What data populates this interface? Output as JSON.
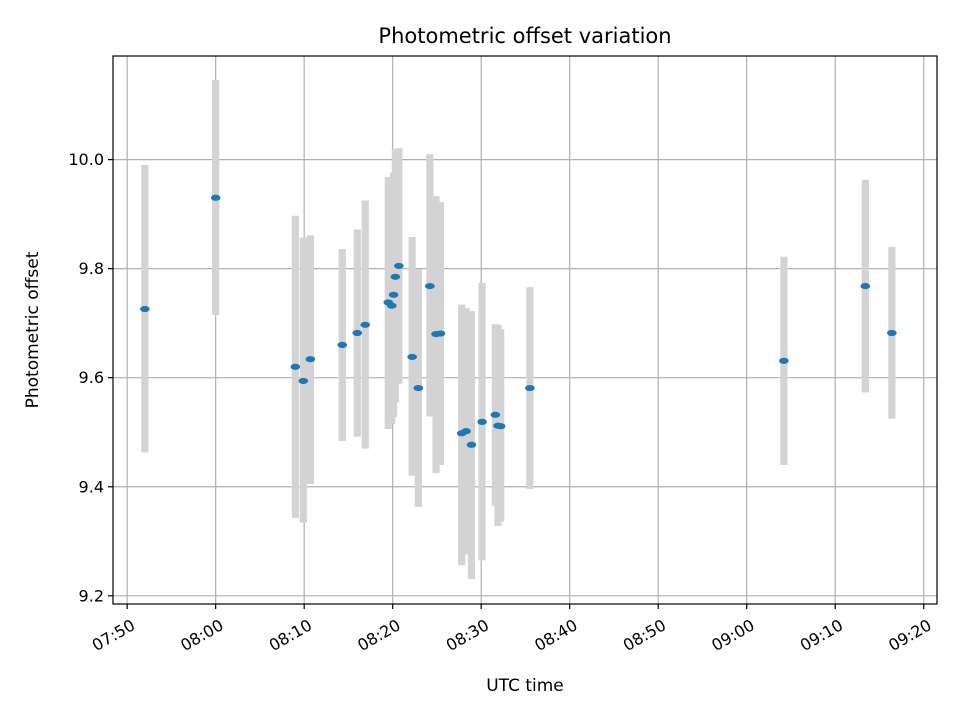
{
  "chart_data": {
    "type": "scatter",
    "title": "Photometric offset variation",
    "xlabel": "UTC time",
    "ylabel": "Photometric offset",
    "x_unit": "minutes after 07:50 UTC",
    "xlim": [
      -1.6,
      91.5
    ],
    "ylim": [
      9.185,
      10.19
    ],
    "xticks": [
      0,
      10,
      20,
      30,
      40,
      50,
      60,
      70,
      80,
      90
    ],
    "xtick_labels": [
      "07:50",
      "08:00",
      "08:10",
      "08:20",
      "08:30",
      "08:40",
      "08:50",
      "09:00",
      "09:10",
      "09:20"
    ],
    "yticks": [
      9.2,
      9.4,
      9.6,
      9.8,
      10.0
    ],
    "ytick_labels": [
      "9.2",
      "9.4",
      "9.6",
      "9.8",
      "10.0"
    ],
    "grid": true,
    "errorbar_color": "#d3d3d3",
    "marker_color": "#1f77b4",
    "points": [
      {
        "x": 2.0,
        "y": 9.726,
        "lo": 9.463,
        "hi": 9.99
      },
      {
        "x": 10.0,
        "y": 9.93,
        "lo": 9.715,
        "hi": 10.146
      },
      {
        "x": 19.0,
        "y": 9.62,
        "lo": 9.343,
        "hi": 9.897
      },
      {
        "x": 19.9,
        "y": 9.594,
        "lo": 9.334,
        "hi": 9.857
      },
      {
        "x": 20.7,
        "y": 9.634,
        "lo": 9.405,
        "hi": 9.861
      },
      {
        "x": 24.3,
        "y": 9.66,
        "lo": 9.484,
        "hi": 9.836
      },
      {
        "x": 26.0,
        "y": 9.682,
        "lo": 9.492,
        "hi": 9.872
      },
      {
        "x": 26.9,
        "y": 9.697,
        "lo": 9.47,
        "hi": 9.925
      },
      {
        "x": 29.5,
        "y": 9.738,
        "lo": 9.506,
        "hi": 9.968
      },
      {
        "x": 29.9,
        "y": 9.732,
        "lo": 9.515,
        "hi": 9.958
      },
      {
        "x": 30.1,
        "y": 9.752,
        "lo": 9.528,
        "hi": 9.976
      },
      {
        "x": 30.3,
        "y": 9.785,
        "lo": 9.555,
        "hi": 10.019
      },
      {
        "x": 30.7,
        "y": 9.805,
        "lo": 9.589,
        "hi": 10.021
      },
      {
        "x": 32.2,
        "y": 9.638,
        "lo": 9.42,
        "hi": 9.858
      },
      {
        "x": 32.9,
        "y": 9.581,
        "lo": 9.363,
        "hi": 9.799
      },
      {
        "x": 34.2,
        "y": 9.768,
        "lo": 9.529,
        "hi": 10.01
      },
      {
        "x": 34.9,
        "y": 9.68,
        "lo": 9.425,
        "hi": 9.933
      },
      {
        "x": 35.4,
        "y": 9.681,
        "lo": 9.44,
        "hi": 9.922
      },
      {
        "x": 37.8,
        "y": 9.498,
        "lo": 9.256,
        "hi": 9.734
      },
      {
        "x": 38.3,
        "y": 9.502,
        "lo": 9.276,
        "hi": 9.728
      },
      {
        "x": 38.9,
        "y": 9.477,
        "lo": 9.231,
        "hi": 9.722
      },
      {
        "x": 40.1,
        "y": 9.519,
        "lo": 9.265,
        "hi": 9.774
      },
      {
        "x": 41.6,
        "y": 9.532,
        "lo": 9.365,
        "hi": 9.698
      },
      {
        "x": 41.9,
        "y": 9.512,
        "lo": 9.328,
        "hi": 9.697
      },
      {
        "x": 42.2,
        "y": 9.511,
        "lo": 9.336,
        "hi": 9.689
      },
      {
        "x": 45.5,
        "y": 9.581,
        "lo": 9.396,
        "hi": 9.766
      },
      {
        "x": 74.2,
        "y": 9.631,
        "lo": 9.44,
        "hi": 9.822
      },
      {
        "x": 83.4,
        "y": 9.768,
        "lo": 9.573,
        "hi": 9.963
      },
      {
        "x": 86.4,
        "y": 9.682,
        "lo": 9.525,
        "hi": 9.84
      }
    ]
  }
}
